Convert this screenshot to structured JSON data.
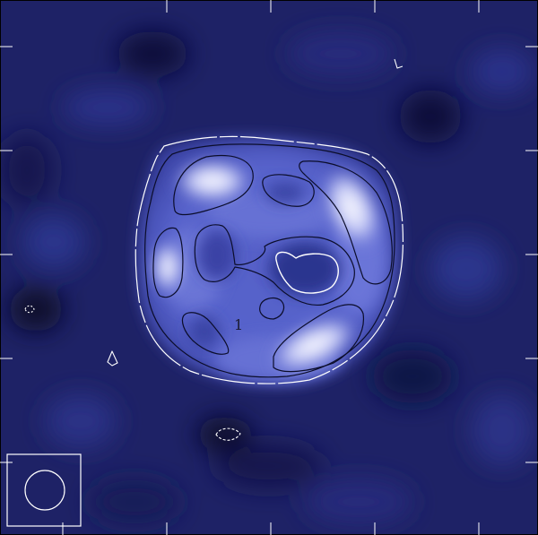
{
  "image": {
    "description_free": true,
    "colors": {
      "background": "#1e2266",
      "background_dark": "#0c0f3a",
      "disk": "#4a55c4",
      "disk_light": "#8c95e6",
      "highlight": "#f4f5ff",
      "contour_dark": "#0b0d2a",
      "contour_light": "#ffffff",
      "axes": "#ffffff"
    },
    "icons": [
      "beam-ellipse-icon"
    ],
    "contour_label": "1"
  }
}
